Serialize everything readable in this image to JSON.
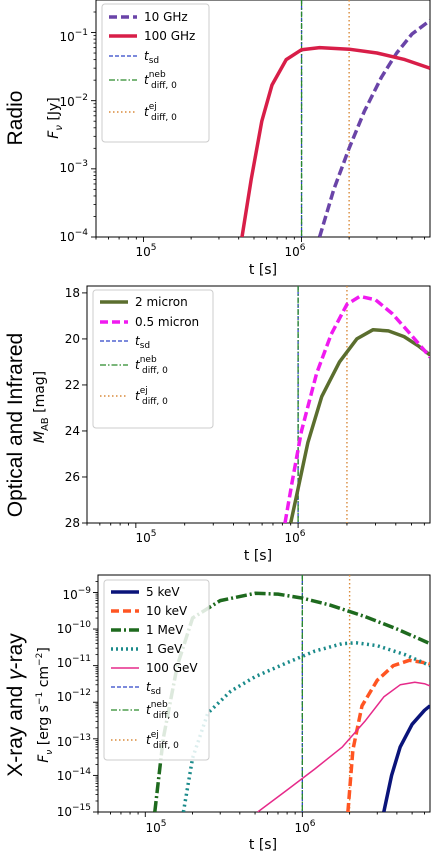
{
  "chart_data": [
    {
      "type": "line",
      "panel": "radio",
      "side_title": "Radio",
      "xlabel": "t [s]",
      "ylabel": "F_ν [Jy]",
      "xscale": "log",
      "yscale": "log",
      "xlim": [
        50000,
        6500000
      ],
      "ylim": [
        0.0001,
        0.3
      ],
      "xtick_labels": [
        "10^5",
        "10^6"
      ],
      "ytick_labels": [
        "10^-4",
        "10^-3",
        "10^-2",
        "10^-1"
      ],
      "legend_position": "top-left",
      "series": [
        {
          "name": "10 GHz",
          "color": "#6a44a8",
          "style": "dashed-thick",
          "x": [
            1300000,
            1600000,
            2000000,
            2500000,
            3200000,
            4000000,
            5000000,
            6500000
          ],
          "y": [
            0.0001,
            0.0005,
            0.002,
            0.007,
            0.022,
            0.05,
            0.095,
            0.15
          ]
        },
        {
          "name": "100 GHz",
          "color": "#d81e48",
          "style": "solid-thick",
          "x": [
            420000,
            480000,
            560000,
            650000,
            800000,
            1000000,
            1300000,
            2000000,
            3000000,
            4500000,
            6500000
          ],
          "y": [
            0.0001,
            0.0007,
            0.005,
            0.017,
            0.04,
            0.056,
            0.06,
            0.057,
            0.05,
            0.04,
            0.03
          ]
        }
      ],
      "vlines": [
        {
          "name": "t_sd",
          "x": 1000000,
          "color": "#2f44c8",
          "style": "dashed"
        },
        {
          "name": "t_diff,0^neb",
          "x": 1000000,
          "color": "#2a8a2a",
          "style": "dashdot"
        },
        {
          "name": "t_diff,0^ej",
          "x": 2000000,
          "color": "#d98a3a",
          "style": "dotted"
        }
      ]
    },
    {
      "type": "line",
      "panel": "optical",
      "side_title": "Optical and Infrared",
      "xlabel": "t [s]",
      "ylabel": "M_AB [mag]",
      "xscale": "log",
      "yscale": "linear",
      "xlim": [
        50000,
        6500000
      ],
      "ylim": [
        28,
        17.7
      ],
      "ytick_labels": [
        "18",
        "20",
        "22",
        "24",
        "26",
        "28"
      ],
      "xtick_labels": [
        "10^5",
        "10^6"
      ],
      "legend_position": "top-left",
      "series": [
        {
          "name": "2 micron",
          "color": "#5b6e2e",
          "style": "solid-thick",
          "x": [
            900000,
            1000000,
            1150000,
            1400000,
            1800000,
            2300000,
            2900000,
            3600000,
            4500000,
            5500000,
            6500000
          ],
          "y": [
            28,
            26.5,
            24.5,
            22.5,
            21.0,
            20.0,
            19.6,
            19.65,
            19.9,
            20.3,
            20.7
          ]
        },
        {
          "name": "0.5 micron",
          "color": "#f01af0",
          "style": "dashed-thick",
          "x": [
            830000,
            920000,
            1050000,
            1300000,
            1600000,
            2000000,
            2400000,
            3000000,
            3800000,
            4800000,
            6000000,
            6500000
          ],
          "y": [
            28,
            26.2,
            24.0,
            21.5,
            19.8,
            18.5,
            18.15,
            18.3,
            18.9,
            19.7,
            20.5,
            20.8
          ]
        }
      ],
      "vlines": [
        {
          "name": "t_sd",
          "x": 1000000,
          "color": "#2f44c8",
          "style": "dashed"
        },
        {
          "name": "t_diff,0^neb",
          "x": 1000000,
          "color": "#2a8a2a",
          "style": "dashdot"
        },
        {
          "name": "t_diff,0^ej",
          "x": 2000000,
          "color": "#d98a3a",
          "style": "dotted"
        }
      ]
    },
    {
      "type": "line",
      "panel": "xray",
      "side_title": "X-ray and γ-ray",
      "xlabel": "t [s]",
      "ylabel": "F_ν [erg s^-1 cm^-2]",
      "xscale": "log",
      "yscale": "log",
      "xlim": [
        50000,
        6500000
      ],
      "ylim": [
        1e-15,
        3e-09
      ],
      "xtick_labels": [
        "10^5",
        "10^6"
      ],
      "ytick_labels": [
        "10^-15",
        "10^-14",
        "10^-13",
        "10^-12",
        "10^-11",
        "10^-10",
        "10^-9"
      ],
      "legend_position": "top-left",
      "series": [
        {
          "name": "5 keV",
          "color": "#0a147a",
          "style": "solid-thick",
          "x": [
            3300000,
            3700000,
            4200000,
            5000000,
            6000000,
            6500000
          ],
          "y": [
            1e-15,
            1e-14,
            6e-14,
            2.5e-13,
            6e-13,
            8e-13
          ]
        },
        {
          "name": "10 keV",
          "color": "#ff5522",
          "style": "dashed-thick",
          "x": [
            1950000,
            2100000,
            2400000,
            3000000,
            3800000,
            4800000,
            6000000,
            6500000
          ],
          "y": [
            1e-15,
            5e-14,
            8e-13,
            4e-12,
            1e-11,
            1.4e-11,
            1.2e-11,
            1.1e-11
          ]
        },
        {
          "name": "1 MeV",
          "color": "#1e6a1e",
          "style": "dashdot-thick",
          "x": [
            115000,
            130000,
            160000,
            200000,
            300000,
            500000,
            700000,
            1000000,
            1500000,
            2500000,
            4000000,
            6500000
          ],
          "y": [
            1e-15,
            1e-13,
            1e-11,
            2e-10,
            6e-10,
            9.5e-10,
            9e-10,
            7e-10,
            4.5e-10,
            2.2e-10,
            1e-10,
            4e-11
          ]
        },
        {
          "name": "1 GeV",
          "color": "#1a8a8a",
          "style": "dotted-thick",
          "x": [
            175000,
            200000,
            250000,
            350000,
            500000,
            800000,
            1200000,
            1800000,
            2200000,
            3000000,
            4500000,
            6500000
          ],
          "y": [
            1e-15,
            3e-14,
            5e-13,
            2e-12,
            5e-12,
            1.2e-11,
            2.5e-11,
            4e-11,
            4.2e-11,
            3.5e-11,
            2e-11,
            1e-11
          ]
        },
        {
          "name": "100 GeV",
          "color": "#e62a8a",
          "style": "solid-thin",
          "x": [
            520000,
            800000,
            1200000,
            1800000,
            2500000,
            3300000,
            4200000,
            5200000,
            6000000,
            6500000
          ],
          "y": [
            1e-15,
            4e-15,
            1.5e-14,
            6e-14,
            3e-13,
            1.4e-12,
            3e-12,
            3.5e-12,
            3.2e-12,
            2.8e-12
          ]
        }
      ],
      "vlines": [
        {
          "name": "t_sd",
          "x": 1000000,
          "color": "#2f44c8",
          "style": "dashed"
        },
        {
          "name": "t_diff,0^neb",
          "x": 1000000,
          "color": "#2a8a2a",
          "style": "dashdot"
        },
        {
          "name": "t_diff,0^ej",
          "x": 2000000,
          "color": "#d98a3a",
          "style": "dotted"
        }
      ]
    }
  ]
}
